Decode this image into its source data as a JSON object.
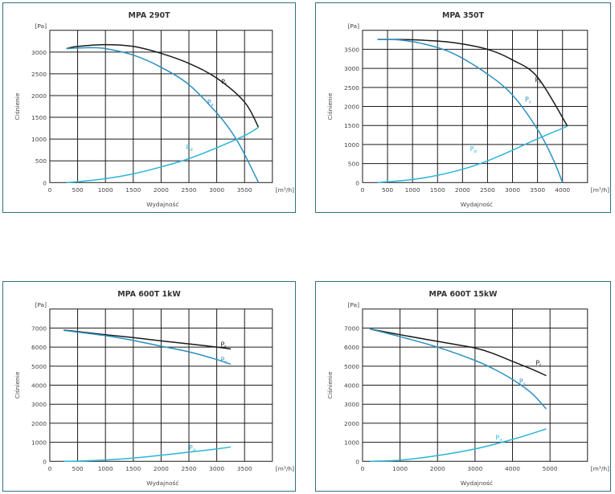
{
  "colors": {
    "pt": "#1a1a1a",
    "ps": "#2a8fc0",
    "pd": "#29b6d8",
    "grid": "#1a1a1a",
    "border": "#2f6f86"
  },
  "chart_data": [
    {
      "type": "line",
      "title": "MPA 290T",
      "xlabel": "Wydajność",
      "ylabel": "Ciśnienie",
      "x_unit": "[m³/h]",
      "y_unit": "[Pa]",
      "xlim": [
        0,
        4000
      ],
      "ylim": [
        0,
        3500
      ],
      "xticks": [
        0,
        500,
        1000,
        1500,
        2000,
        2500,
        3000,
        3500
      ],
      "yticks": [
        0,
        500,
        1000,
        1500,
        2000,
        2500,
        3000
      ],
      "grid": true,
      "series": [
        {
          "name": "Pt",
          "label_at": [
            3080,
            2270
          ],
          "points": [
            [
              300,
              3080
            ],
            [
              500,
              3130
            ],
            [
              1000,
              3170
            ],
            [
              1500,
              3130
            ],
            [
              2000,
              2970
            ],
            [
              2500,
              2740
            ],
            [
              3000,
              2400
            ],
            [
              3500,
              1850
            ],
            [
              3750,
              1270
            ]
          ]
        },
        {
          "name": "Ps",
          "label_at": [
            2830,
            1800
          ],
          "points": [
            [
              300,
              3080
            ],
            [
              700,
              3100
            ],
            [
              1000,
              3080
            ],
            [
              1500,
              2930
            ],
            [
              2000,
              2650
            ],
            [
              2500,
              2250
            ],
            [
              3000,
              1600
            ],
            [
              3300,
              1100
            ],
            [
              3500,
              650
            ],
            [
              3750,
              0
            ]
          ]
        },
        {
          "name": "Pd",
          "label_at": [
            2450,
            760
          ],
          "points": [
            [
              300,
              0
            ],
            [
              500,
              20
            ],
            [
              1000,
              90
            ],
            [
              1500,
              200
            ],
            [
              2000,
              360
            ],
            [
              2500,
              550
            ],
            [
              3000,
              800
            ],
            [
              3500,
              1080
            ],
            [
              3750,
              1270
            ]
          ]
        }
      ]
    },
    {
      "type": "line",
      "title": "MPA 350T",
      "xlabel": "Wydajność",
      "ylabel": "Ciśnienie",
      "x_unit": "[m³/h]",
      "y_unit": "[Pa]",
      "xlim": [
        0,
        4500
      ],
      "ylim": [
        0,
        4000
      ],
      "xticks": [
        0,
        500,
        1000,
        1500,
        2000,
        2500,
        3000,
        3500,
        4000
      ],
      "yticks": [
        0,
        500,
        1000,
        1500,
        2000,
        2500,
        3000,
        3500
      ],
      "grid": true,
      "series": [
        {
          "name": "Pt",
          "label_at": [
            3450,
            2640
          ],
          "points": [
            [
              300,
              3760
            ],
            [
              700,
              3760
            ],
            [
              1200,
              3740
            ],
            [
              1800,
              3680
            ],
            [
              2500,
              3500
            ],
            [
              3000,
              3220
            ],
            [
              3500,
              2770
            ],
            [
              4100,
              1480
            ]
          ]
        },
        {
          "name": "Ps",
          "label_at": [
            3250,
            2130
          ],
          "points": [
            [
              300,
              3760
            ],
            [
              700,
              3750
            ],
            [
              1200,
              3650
            ],
            [
              1800,
              3400
            ],
            [
              2500,
              2850
            ],
            [
              3000,
              2300
            ],
            [
              3500,
              1400
            ],
            [
              3800,
              650
            ],
            [
              4000,
              0
            ]
          ]
        },
        {
          "name": "Pd",
          "label_at": [
            2150,
            830
          ],
          "points": [
            [
              300,
              0
            ],
            [
              500,
              20
            ],
            [
              1000,
              80
            ],
            [
              1500,
              190
            ],
            [
              2000,
              350
            ],
            [
              2500,
              570
            ],
            [
              3000,
              850
            ],
            [
              3500,
              1150
            ],
            [
              4100,
              1480
            ]
          ]
        }
      ]
    },
    {
      "type": "line",
      "title": "MPA 600T 1kW",
      "xlabel": "Wydajność",
      "ylabel": "Ciśnienie",
      "x_unit": "[m³/h]",
      "y_unit": "[Pa]",
      "xlim": [
        0,
        4000
      ],
      "ylim": [
        0,
        8000
      ],
      "xticks": [
        0,
        500,
        1000,
        1500,
        2000,
        2500,
        3000,
        3500
      ],
      "yticks": [
        0,
        1000,
        2000,
        3000,
        4000,
        5000,
        6000,
        7000
      ],
      "grid": true,
      "series": [
        {
          "name": "Pt",
          "label_at": [
            3070,
            6030
          ],
          "points": [
            [
              250,
              6900
            ],
            [
              1000,
              6650
            ],
            [
              1500,
              6500
            ],
            [
              2000,
              6330
            ],
            [
              2500,
              6170
            ],
            [
              3000,
              6000
            ],
            [
              3250,
              5900
            ]
          ]
        },
        {
          "name": "Ps",
          "label_at": [
            3070,
            5230
          ],
          "points": [
            [
              250,
              6880
            ],
            [
              1000,
              6600
            ],
            [
              1500,
              6350
            ],
            [
              2000,
              6050
            ],
            [
              2500,
              5750
            ],
            [
              3000,
              5350
            ],
            [
              3250,
              5100
            ]
          ]
        },
        {
          "name": "Pd",
          "label_at": [
            2500,
            600
          ],
          "points": [
            [
              250,
              0
            ],
            [
              500,
              10
            ],
            [
              1000,
              70
            ],
            [
              1500,
              170
            ],
            [
              2000,
              320
            ],
            [
              2500,
              480
            ],
            [
              3000,
              650
            ],
            [
              3250,
              750
            ]
          ]
        }
      ]
    },
    {
      "type": "line",
      "title": "MPA 600T 15kW",
      "xlabel": "Wydajność",
      "ylabel": "Ciśnienie",
      "x_unit": "[m³/h]",
      "y_unit": "[Pa]",
      "xlim": [
        0,
        6000
      ],
      "ylim": [
        0,
        8000
      ],
      "xticks": [
        0,
        1000,
        2000,
        3000,
        4000,
        5000
      ],
      "yticks": [
        0,
        1000,
        2000,
        3000,
        4000,
        5000,
        6000,
        7000
      ],
      "grid": true,
      "series": [
        {
          "name": "Pt",
          "label_at": [
            4620,
            5060
          ],
          "points": [
            [
              200,
              6950
            ],
            [
              1000,
              6650
            ],
            [
              2000,
              6300
            ],
            [
              3000,
              5950
            ],
            [
              3500,
              5650
            ],
            [
              4000,
              5250
            ],
            [
              4500,
              4850
            ],
            [
              4900,
              4500
            ]
          ]
        },
        {
          "name": "Ps",
          "label_at": [
            4180,
            4080
          ],
          "points": [
            [
              200,
              6950
            ],
            [
              1000,
              6550
            ],
            [
              2000,
              6000
            ],
            [
              3000,
              5300
            ],
            [
              3500,
              4850
            ],
            [
              4000,
              4300
            ],
            [
              4500,
              3600
            ],
            [
              4900,
              2750
            ]
          ]
        },
        {
          "name": "Pd",
          "label_at": [
            3550,
            1140
          ],
          "points": [
            [
              200,
              0
            ],
            [
              1000,
              60
            ],
            [
              2000,
              300
            ],
            [
              3000,
              650
            ],
            [
              4000,
              1150
            ],
            [
              4900,
              1700
            ]
          ]
        }
      ]
    }
  ]
}
